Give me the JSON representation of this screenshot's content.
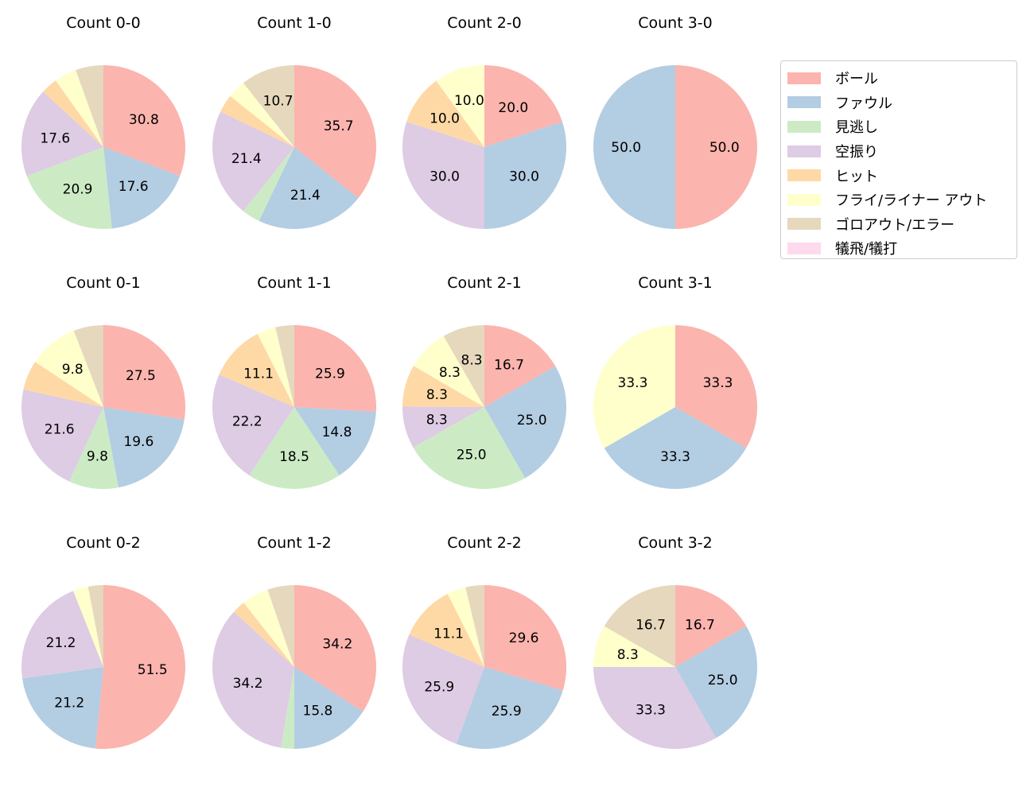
{
  "chart_data": {
    "type": "pie",
    "categories": [
      "ボール",
      "ファウル",
      "見逃し",
      "空振り",
      "ヒット",
      "フライ/ライナー アウト",
      "ゴロアウト/エラー",
      "犠飛/犠打"
    ],
    "colors": [
      "#fbb4ae",
      "#b3cde3",
      "#ccebc5",
      "#decbe4",
      "#fed9a6",
      "#ffffcc",
      "#e5d8bd",
      "#fddaec"
    ],
    "legend_placement": "right",
    "start_angle": "top",
    "direction": "clockwise",
    "charts": [
      {
        "title": "Count 0-0",
        "values": [
          30.8,
          17.6,
          20.9,
          17.6,
          3.3,
          4.4,
          5.5,
          0
        ]
      },
      {
        "title": "Count 1-0",
        "values": [
          35.7,
          21.4,
          3.6,
          21.4,
          3.6,
          3.6,
          10.7,
          0
        ]
      },
      {
        "title": "Count 2-0",
        "values": [
          20.0,
          30.0,
          0,
          30.0,
          10.0,
          10.0,
          0,
          0
        ]
      },
      {
        "title": "Count 3-0",
        "values": [
          50.0,
          50.0,
          0,
          0,
          0,
          0,
          0,
          0
        ]
      },
      {
        "title": "Count 0-1",
        "values": [
          27.5,
          19.6,
          9.8,
          21.6,
          5.9,
          9.8,
          5.9,
          0
        ]
      },
      {
        "title": "Count 1-1",
        "values": [
          25.9,
          14.8,
          18.5,
          22.2,
          11.1,
          3.7,
          3.7,
          0
        ]
      },
      {
        "title": "Count 2-1",
        "values": [
          16.7,
          25.0,
          25.0,
          8.3,
          8.3,
          8.3,
          8.3,
          0
        ]
      },
      {
        "title": "Count 3-1",
        "values": [
          33.3,
          33.3,
          0,
          0,
          0,
          33.3,
          0,
          0
        ]
      },
      {
        "title": "Count 0-2",
        "values": [
          51.5,
          21.2,
          0,
          21.2,
          0,
          3.0,
          3.0,
          0
        ]
      },
      {
        "title": "Count 1-2",
        "values": [
          34.2,
          15.8,
          2.6,
          34.2,
          2.6,
          5.3,
          5.3,
          0
        ]
      },
      {
        "title": "Count 2-2",
        "values": [
          29.6,
          25.9,
          0,
          25.9,
          11.1,
          3.7,
          3.7,
          0
        ]
      },
      {
        "title": "Count 3-2",
        "values": [
          16.7,
          25.0,
          0,
          33.3,
          0,
          8.3,
          16.7,
          0
        ]
      }
    ]
  }
}
